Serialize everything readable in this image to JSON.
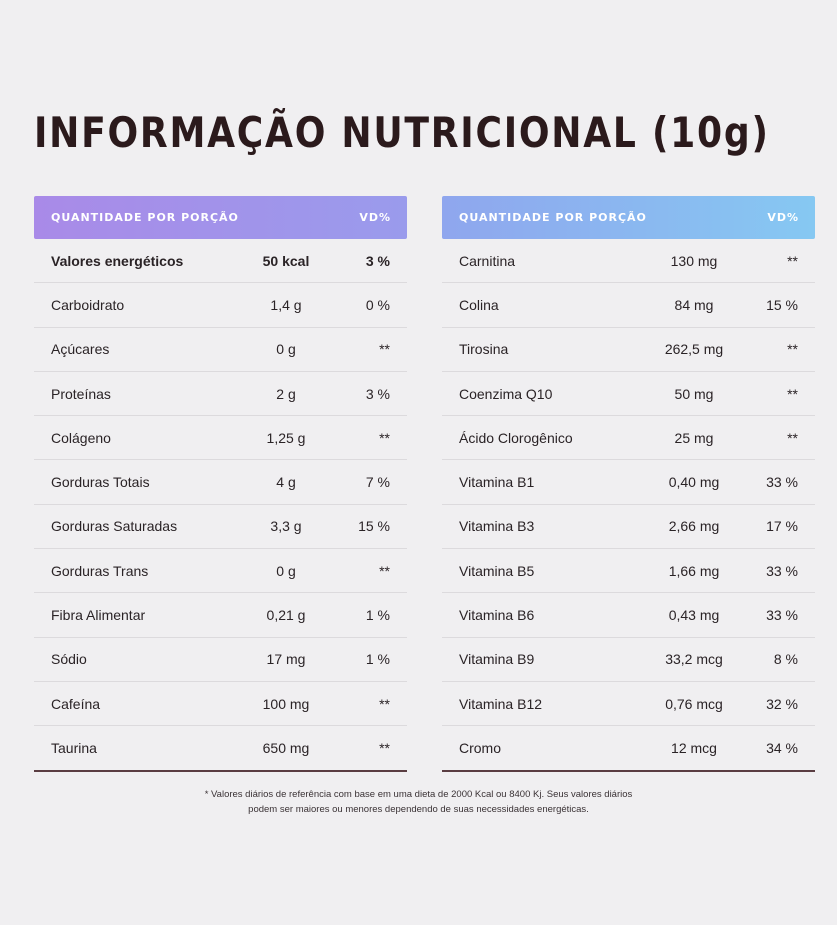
{
  "title": "INFORMAÇÃO NUTRICIONAL (10g)",
  "left_table": {
    "header": {
      "quantity": "QUANTIDADE POR PORÇÃO",
      "vd": "VD%"
    },
    "rows": [
      {
        "name": "Valores energéticos",
        "amount": "50 kcal",
        "vd": "3 %"
      },
      {
        "name": "Carboidrato",
        "amount": "1,4 g",
        "vd": "0 %"
      },
      {
        "name": "Açúcares",
        "amount": "0 g",
        "vd": "**"
      },
      {
        "name": "Proteínas",
        "amount": "2 g",
        "vd": "3 %"
      },
      {
        "name": "Colágeno",
        "amount": "1,25 g",
        "vd": "**"
      },
      {
        "name": "Gorduras Totais",
        "amount": "4 g",
        "vd": "7 %"
      },
      {
        "name": "Gorduras Saturadas",
        "amount": "3,3 g",
        "vd": "15 %"
      },
      {
        "name": "Gorduras Trans",
        "amount": "0 g",
        "vd": "**"
      },
      {
        "name": "Fibra Alimentar",
        "amount": "0,21 g",
        "vd": "1 %"
      },
      {
        "name": "Sódio",
        "amount": "17 mg",
        "vd": "1 %"
      },
      {
        "name": "Cafeína",
        "amount": "100 mg",
        "vd": "**"
      },
      {
        "name": "Taurina",
        "amount": "650 mg",
        "vd": "**"
      }
    ]
  },
  "right_table": {
    "header": {
      "quantity": "QUANTIDADE POR PORÇÃO",
      "vd": "VD%"
    },
    "rows": [
      {
        "name": "Carnitina",
        "amount": "130 mg",
        "vd": "**"
      },
      {
        "name": "Colina",
        "amount": "84 mg",
        "vd": "15 %"
      },
      {
        "name": "Tirosina",
        "amount": "262,5 mg",
        "vd": "**"
      },
      {
        "name": "Coenzima Q10",
        "amount": "50 mg",
        "vd": "**"
      },
      {
        "name": "Ácido Clorogênico",
        "amount": "25 mg",
        "vd": "**"
      },
      {
        "name": "Vitamina B1",
        "amount": "0,40 mg",
        "vd": "33 %"
      },
      {
        "name": "Vitamina B3",
        "amount": "2,66 mg",
        "vd": "17 %"
      },
      {
        "name": "Vitamina B5",
        "amount": "1,66 mg",
        "vd": "33 %"
      },
      {
        "name": "Vitamina B6",
        "amount": "0,43 mg",
        "vd": "33 %"
      },
      {
        "name": "Vitamina B9",
        "amount": "33,2 mcg",
        "vd": "8 %"
      },
      {
        "name": "Vitamina B12",
        "amount": "0,76 mcg",
        "vd": "32 %"
      },
      {
        "name": "Cromo",
        "amount": "12 mcg",
        "vd": "34 %"
      }
    ]
  },
  "footnote": {
    "line1": "* Valores diários de referência com base em uma dieta de 2000 Kcal ou 8400 Kj. Seus valores diários",
    "line2": "podem ser maiores ou menores dependendo de suas necessidades energéticas."
  },
  "colors": {
    "left_header_gradient": [
      "#a98ae8",
      "#9a9bec"
    ],
    "right_header_gradient": [
      "#8fa6ee",
      "#86c8f2"
    ],
    "bottom_rule": "#5a3d42"
  }
}
